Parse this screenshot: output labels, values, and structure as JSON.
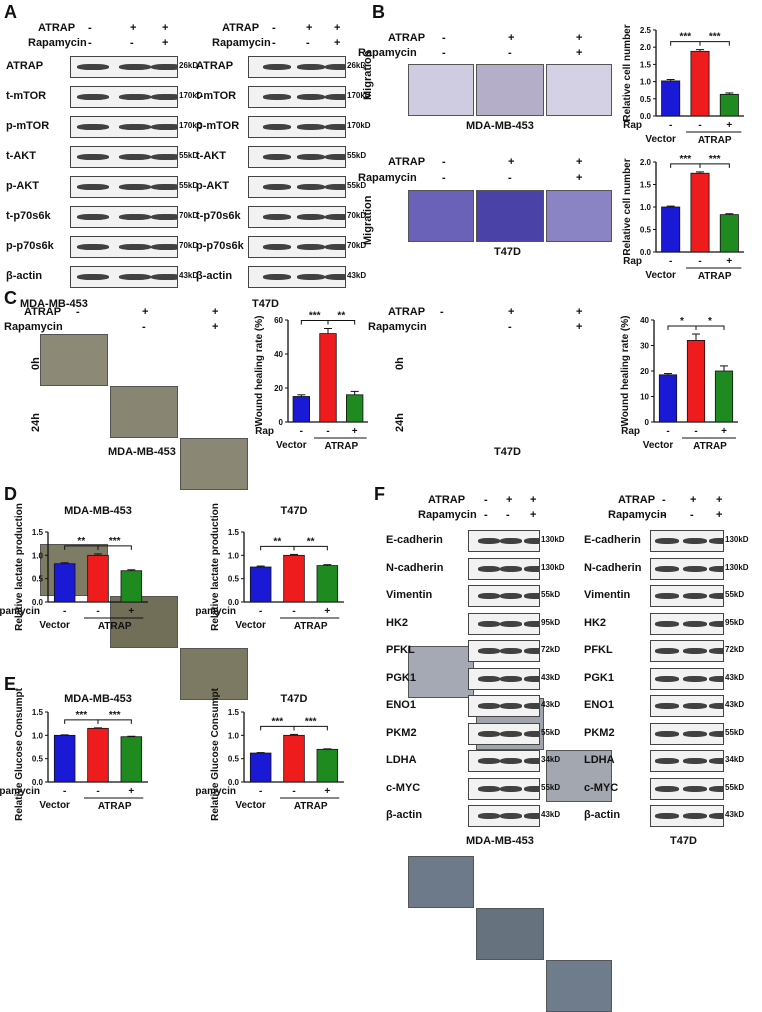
{
  "letters": {
    "A": "A",
    "B": "B",
    "C": "C",
    "D": "D",
    "E": "E",
    "F": "F"
  },
  "tx": {
    "atrap": "ATRAP",
    "rapamycin": "Rapamycin",
    "rap": "Rap",
    "vector": "Vector",
    "minus": "-",
    "plus": "+",
    "mda": "MDA-MB-453",
    "t47d": "T47D",
    "migration": "Migration",
    "h0": "0h",
    "h24": "24h"
  },
  "panelA": {
    "rows": [
      {
        "name": "ATRAP",
        "size": "26kD"
      },
      {
        "name": "t-mTOR",
        "size": "170kD"
      },
      {
        "name": "p-mTOR",
        "size": "170kD"
      },
      {
        "name": "t-AKT",
        "size": "55kD"
      },
      {
        "name": "p-AKT",
        "size": "55kD"
      },
      {
        "name": "t-p70s6k",
        "size": "70kD"
      },
      {
        "name": "p-p70s6k",
        "size": "70kD"
      },
      {
        "name": "β-actin",
        "size": "43kD"
      }
    ]
  },
  "panelF": {
    "rows": [
      {
        "name": "E-cadherin",
        "size": "130kD"
      },
      {
        "name": "N-cadherin",
        "size": "130kD"
      },
      {
        "name": "Vimentin",
        "size": "55kD"
      },
      {
        "name": "HK2",
        "size": "95kD"
      },
      {
        "name": "PFKL",
        "size": "72kD"
      },
      {
        "name": "PGK1",
        "size": "43kD"
      },
      {
        "name": "ENO1",
        "size": "43kD"
      },
      {
        "name": "PKM2",
        "size": "55kD"
      },
      {
        "name": "LDHA",
        "size": "34kD"
      },
      {
        "name": "c-MYC",
        "size": "55kD"
      },
      {
        "name": "β-actin",
        "size": "43kD"
      }
    ]
  },
  "colors": {
    "vector": "#1a1ad6",
    "atrap": "#ee1c1c",
    "rap": "#1f8a1f"
  },
  "chart_data": [
    {
      "id": "B-MDA",
      "type": "bar",
      "ylabel": "Relative cell number",
      "ylim": [
        0,
        2.5
      ],
      "yticks": [
        0.0,
        0.5,
        1.0,
        1.5,
        2.0,
        2.5
      ],
      "values": [
        1.02,
        1.88,
        0.63
      ],
      "errors": [
        0.04,
        0.05,
        0.04
      ],
      "sig": [
        "***",
        "***"
      ],
      "bottom": "rap"
    },
    {
      "id": "B-T47D",
      "type": "bar",
      "ylabel": "Relative cell number",
      "ylim": [
        0,
        2.0
      ],
      "yticks": [
        0.0,
        0.5,
        1.0,
        1.5,
        2.0
      ],
      "values": [
        1.0,
        1.75,
        0.83
      ],
      "errors": [
        0.02,
        0.03,
        0.02
      ],
      "sig": [
        "***",
        "***"
      ],
      "bottom": "rap"
    },
    {
      "id": "C-MDA",
      "type": "bar",
      "ylabel": "Wound healing rate (%)",
      "ylim": [
        0,
        60
      ],
      "yticks": [
        0,
        20,
        40,
        60
      ],
      "values": [
        15,
        52,
        16
      ],
      "errors": [
        1,
        3,
        2
      ],
      "sig": [
        "***",
        "**"
      ],
      "bottom": "rap"
    },
    {
      "id": "C-T47D",
      "type": "bar",
      "ylabel": "Wound healing rate (%)",
      "ylim": [
        0,
        40
      ],
      "yticks": [
        0,
        10,
        20,
        30,
        40
      ],
      "values": [
        18.5,
        32,
        20
      ],
      "errors": [
        0.5,
        2.5,
        2
      ],
      "sig": [
        "*",
        "*"
      ],
      "bottom": "rap"
    },
    {
      "id": "D-MDA",
      "type": "bar",
      "title": "MDA-MB-453",
      "ylabel": "Relative lactate production",
      "ylim": [
        0,
        1.5
      ],
      "yticks": [
        0.0,
        0.5,
        1.0,
        1.5
      ],
      "values": [
        0.82,
        1.0,
        0.67
      ],
      "errors": [
        0.02,
        0.03,
        0.02
      ],
      "sig": [
        "**",
        "***"
      ],
      "bottom": "rapamycin"
    },
    {
      "id": "D-T47D",
      "type": "bar",
      "title": "T47D",
      "ylabel": "Relative lactate production",
      "ylim": [
        0,
        1.5
      ],
      "yticks": [
        0.0,
        0.5,
        1.0,
        1.5
      ],
      "values": [
        0.75,
        1.0,
        0.78
      ],
      "errors": [
        0.02,
        0.02,
        0.02
      ],
      "sig": [
        "**",
        "**"
      ],
      "bottom": "rapamycin"
    },
    {
      "id": "E-MDA",
      "type": "bar",
      "title": "MDA-MB-453",
      "ylabel": "Relative Glucose Consumption",
      "ylim": [
        0,
        1.5
      ],
      "yticks": [
        0.0,
        0.5,
        1.0,
        1.5
      ],
      "values": [
        1.0,
        1.15,
        0.97
      ],
      "errors": [
        0.01,
        0.01,
        0.01
      ],
      "sig": [
        "***",
        "***"
      ],
      "bottom": "rapamycin"
    },
    {
      "id": "E-T47D",
      "type": "bar",
      "title": "T47D",
      "ylabel": "Relative Glucose Consumption",
      "ylim": [
        0,
        1.5
      ],
      "yticks": [
        0.0,
        0.5,
        1.0,
        1.5
      ],
      "values": [
        0.62,
        1.0,
        0.7
      ],
      "errors": [
        0.01,
        0.02,
        0.01
      ],
      "sig": [
        "***",
        "***"
      ],
      "bottom": "rapamycin"
    }
  ]
}
